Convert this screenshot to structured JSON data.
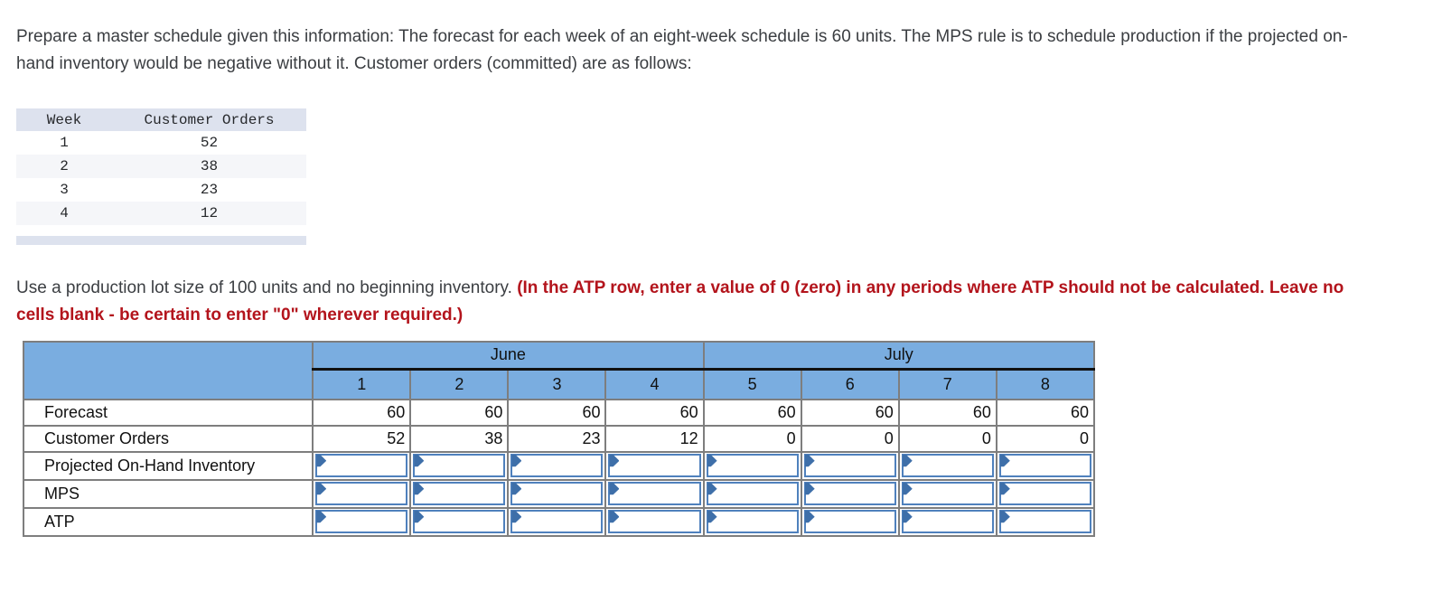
{
  "colors": {
    "header_blue": "#7aade0",
    "grid_gray": "#7e7e7e",
    "input_border_blue": "#4f81bd",
    "flag_blue": "#3e6fa9",
    "warning_red": "#b3141c",
    "orders_header_bg": "#dde2ee",
    "orders_alt_row_bg": "#f5f6f9"
  },
  "intro": {
    "text": "Prepare a master schedule given this information: The forecast for each week of an eight-week schedule is 60 units. The MPS rule is to schedule production if the projected on-hand inventory would be negative without it. Customer orders (committed) are as follows:"
  },
  "orders_table": {
    "headers": [
      "Week",
      "Customer Orders"
    ],
    "rows": [
      {
        "week": "1",
        "qty": "52"
      },
      {
        "week": "2",
        "qty": "38"
      },
      {
        "week": "3",
        "qty": "23"
      },
      {
        "week": "4",
        "qty": "12"
      }
    ]
  },
  "instruction": {
    "normal": "Use a production lot size of 100 units and no beginning inventory. ",
    "emphasis": "(In the ATP row, enter a value of 0 (zero) in any periods where ATP should not be calculated. Leave no cells blank - be certain to enter \"0\" wherever required.)"
  },
  "mps": {
    "months": [
      {
        "label": "June"
      },
      {
        "label": "July"
      }
    ],
    "weeks": [
      "1",
      "2",
      "3",
      "4",
      "5",
      "6",
      "7",
      "8"
    ],
    "rows": [
      {
        "label": "Forecast",
        "values": [
          "60",
          "60",
          "60",
          "60",
          "60",
          "60",
          "60",
          "60"
        ]
      },
      {
        "label": "Customer Orders",
        "values": [
          "52",
          "38",
          "23",
          "12",
          "0",
          "0",
          "0",
          "0"
        ]
      },
      {
        "label": "Projected On-Hand Inventory"
      },
      {
        "label": "MPS"
      },
      {
        "label": "ATP"
      }
    ]
  }
}
